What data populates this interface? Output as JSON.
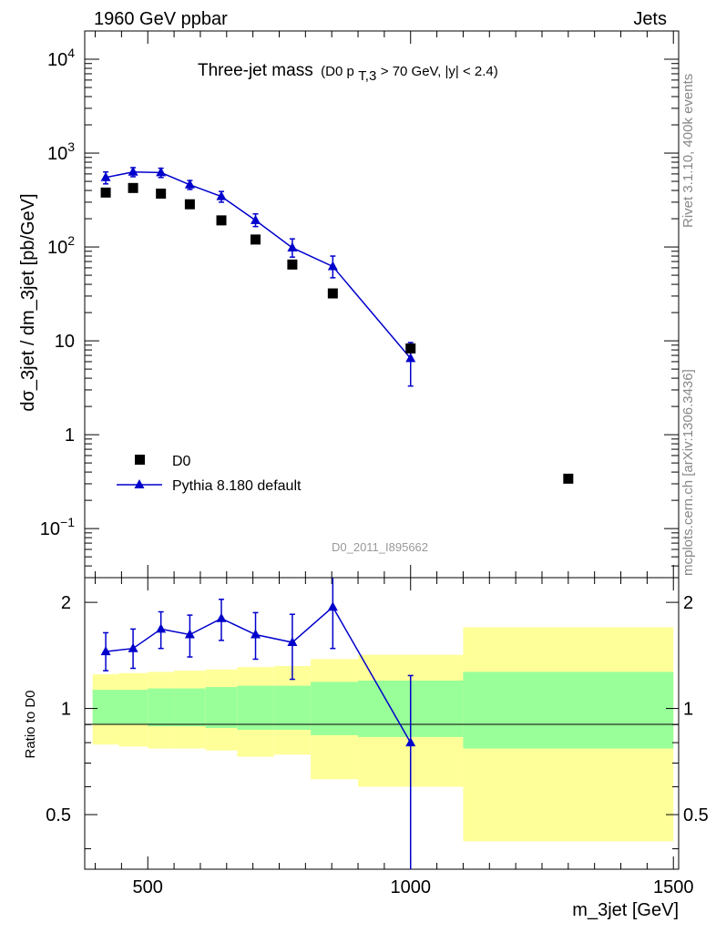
{
  "header": {
    "left": "1960 GeV ppbar",
    "right": "Jets"
  },
  "side_labels": {
    "rivet": "Rivet 3.1.10,  400k events",
    "mcplots": "mcplots.cern.ch [arXiv:1306.3436]"
  },
  "watermark": "D0_2011_I895662",
  "colors": {
    "mc": "#0000cc",
    "data": "#000000",
    "band_inner": "#99ff99",
    "band_outer": "#ffff99"
  },
  "chart_data": [
    {
      "type": "scatter",
      "title": "Three-jet mass",
      "subtitle_parts": {
        "pre": "(D0 p",
        "sub": "T,3",
        "post": " > 70 GeV, |y| < 2.4)"
      },
      "xlabel": "",
      "ylabel": "dσ_3jet / dm_3jet [pb/GeV]",
      "yscale": "log",
      "xlim": [
        380,
        1510
      ],
      "ylim": [
        0.03,
        20000
      ],
      "y_ticks": [
        {
          "value": 0.1,
          "base": "10",
          "exp": "−1"
        },
        {
          "value": 1,
          "base": "1",
          "exp": ""
        },
        {
          "value": 10,
          "base": "10",
          "exp": ""
        },
        {
          "value": 100,
          "base": "10",
          "exp": "2"
        },
        {
          "value": 1000,
          "base": "10",
          "exp": "3"
        },
        {
          "value": 10000,
          "base": "10",
          "exp": "4"
        }
      ],
      "legend": [
        "D0",
        "Pythia 8.180 default"
      ],
      "series": [
        {
          "name": "D0",
          "marker": "square",
          "x": [
            420,
            472,
            525,
            580,
            640,
            705,
            775,
            852,
            1000,
            1300
          ],
          "y": [
            380,
            425,
            370,
            285,
            192,
            120,
            65,
            32,
            8.3,
            0.34
          ]
        },
        {
          "name": "Pythia 8.180 default",
          "marker": "triangle",
          "x": [
            420,
            472,
            525,
            580,
            640,
            705,
            775,
            852,
            1000
          ],
          "y": [
            550,
            630,
            620,
            460,
            345,
            192,
            98,
            62,
            6.5
          ],
          "yerr_low": [
            470,
            560,
            550,
            410,
            300,
            165,
            78,
            47,
            3.3
          ],
          "yerr_high": [
            630,
            700,
            690,
            510,
            390,
            225,
            122,
            80,
            9.6
          ]
        }
      ]
    },
    {
      "type": "scatter",
      "title": "",
      "xlabel": "m_3jet [GeV]",
      "ylabel": "Ratio to D0",
      "xlim": [
        380,
        1510
      ],
      "ylim": [
        0.35,
        2.35
      ],
      "x_ticks": [
        500,
        1000,
        1500
      ],
      "y_ticks": [
        0.5,
        1,
        2
      ],
      "bands": {
        "edges": [
          395,
          445,
          500,
          550,
          610,
          670,
          740,
          810,
          900,
          1100,
          1500
        ],
        "inner_low": [
          0.9,
          0.9,
          0.89,
          0.89,
          0.88,
          0.87,
          0.87,
          0.84,
          0.83,
          0.77
        ],
        "inner_high": [
          1.13,
          1.13,
          1.14,
          1.14,
          1.15,
          1.16,
          1.16,
          1.19,
          1.2,
          1.27
        ],
        "outer_low": [
          0.79,
          0.78,
          0.77,
          0.77,
          0.76,
          0.73,
          0.74,
          0.63,
          0.6,
          0.42
        ],
        "outer_high": [
          1.25,
          1.26,
          1.27,
          1.28,
          1.29,
          1.31,
          1.32,
          1.38,
          1.42,
          1.7
        ]
      },
      "series": [
        {
          "name": "Pythia 8.180 default",
          "marker": "triangle",
          "x": [
            420,
            472,
            525,
            580,
            640,
            705,
            775,
            852,
            1000
          ],
          "y": [
            1.45,
            1.48,
            1.68,
            1.62,
            1.8,
            1.62,
            1.54,
            1.94,
            0.8
          ],
          "yerr_low": [
            1.28,
            1.3,
            1.48,
            1.4,
            1.56,
            1.38,
            1.21,
            1.48,
            0.34
          ],
          "yerr_high": [
            1.64,
            1.68,
            1.88,
            1.84,
            2.04,
            1.87,
            1.85,
            2.43,
            1.24
          ]
        }
      ]
    }
  ]
}
